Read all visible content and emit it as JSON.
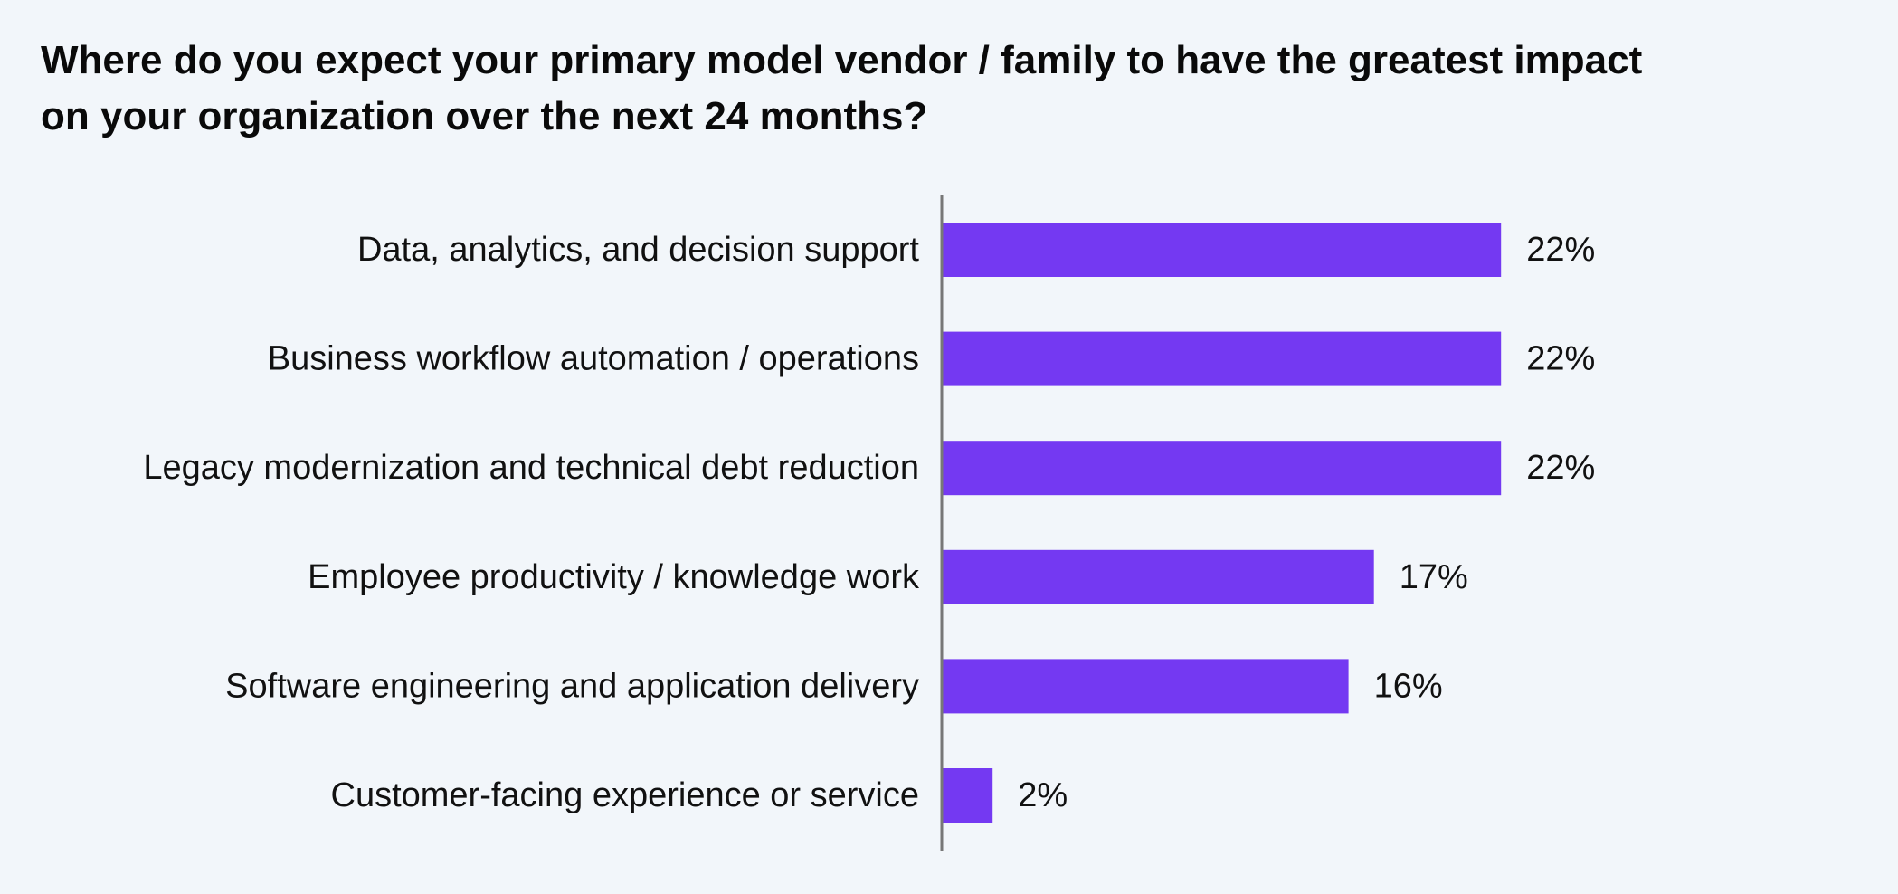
{
  "chart_data": {
    "type": "bar",
    "orientation": "horizontal",
    "title": "Where do you expect your primary model vendor / family to have the greatest impact\non your organization over the next 24 months?",
    "categories": [
      "Data, analytics, and decision support",
      "Business workflow automation / operations",
      "Legacy modernization and technical debt reduction",
      "Employee productivity / knowledge work",
      "Software engineering and application delivery",
      "Customer-facing experience or service"
    ],
    "values": [
      22,
      22,
      22,
      17,
      16,
      2
    ],
    "value_labels": [
      "22%",
      "22%",
      "22%",
      "17%",
      "16%",
      "2%"
    ],
    "unit": "%",
    "xlim": [
      0,
      30
    ],
    "grid": false,
    "legend": "none",
    "colors": {
      "bar": "#7439f2",
      "axis": "#777777",
      "background": "#f2f6fa",
      "text": "#111111"
    }
  }
}
